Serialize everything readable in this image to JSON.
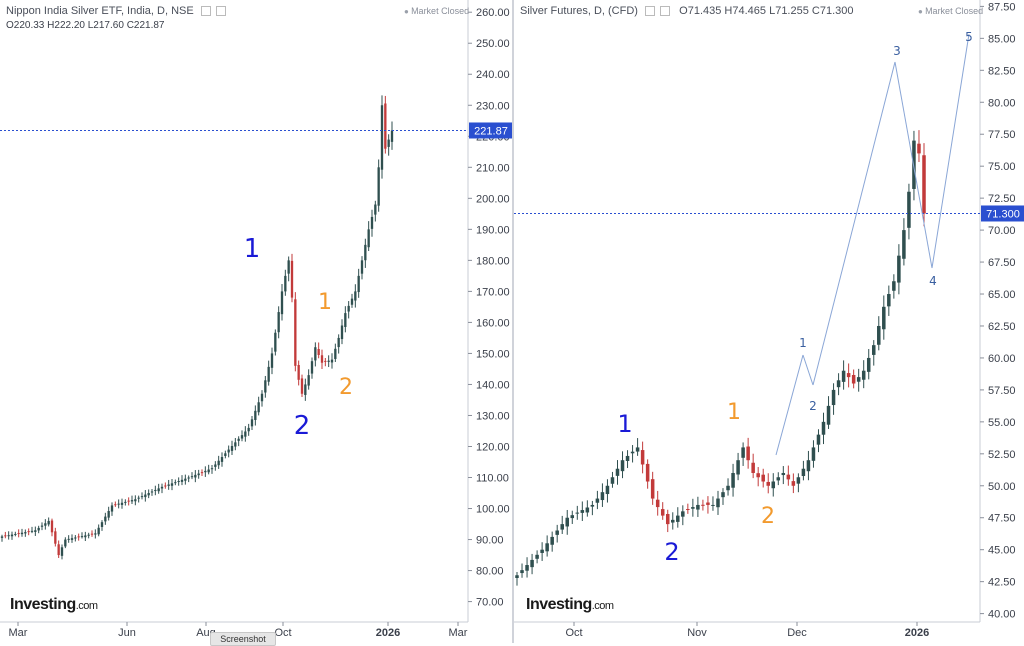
{
  "chart_data": [
    {
      "type": "candlestick",
      "header": "Nippon India Silver ETF, India, D, NSE",
      "status": "Market Closed",
      "ohlc": {
        "o": "O220.33",
        "h": "H222.20",
        "l": "L217.60",
        "c": "C221.87"
      },
      "last_price": 221.87,
      "last_price_label": "221.87",
      "y_ticks": [
        70,
        80,
        90,
        100,
        110,
        120,
        130,
        140,
        150,
        160,
        170,
        180,
        190,
        200,
        210,
        220,
        230,
        240,
        250,
        260
      ],
      "y_tick_labels": [
        "70.00",
        "80.00",
        "90.00",
        "100.00",
        "110.00",
        "120.00",
        "130.00",
        "140.00",
        "150.00",
        "160.00",
        "170.00",
        "180.00",
        "190.00",
        "200.00",
        "210.00",
        "220.00",
        "230.00",
        "240.00",
        "250.00",
        "260.00"
      ],
      "ylim": [
        66,
        262
      ],
      "x_labels": [
        "Mar",
        "Jun",
        "Aug",
        "Oct",
        "2026",
        "Mar"
      ],
      "series": [],
      "annotations": [
        {
          "text": "1",
          "x": 252,
          "y": 257,
          "color": "#1a1ad6",
          "size": 26
        },
        {
          "text": "2",
          "x": 302,
          "y": 434,
          "color": "#1a1ad6",
          "size": 26
        },
        {
          "text": "1",
          "x": 325,
          "y": 309,
          "color": "#f29a2e",
          "size": 22
        },
        {
          "text": "2",
          "x": 346,
          "y": 394,
          "color": "#f29a2e",
          "size": 22
        }
      ],
      "logo": "Investing",
      "logo_suffix": ".com"
    },
    {
      "type": "candlestick",
      "header": "Silver Futures, D, (CFD)",
      "status": "Market Closed",
      "ohlc": {
        "o": "O71.435",
        "h": "H74.465",
        "l": "L71.255",
        "c": "C71.300"
      },
      "last_price": 71.3,
      "last_price_label": "71.300",
      "y_ticks": [
        40,
        42.5,
        45,
        47.5,
        50,
        52.5,
        55,
        57.5,
        60,
        62.5,
        65,
        67.5,
        70,
        72.5,
        75,
        77.5,
        80,
        82.5,
        85,
        87.5
      ],
      "y_tick_labels": [
        "40.00",
        "42.50",
        "45.00",
        "47.50",
        "50.00",
        "52.50",
        "55.00",
        "57.50",
        "60.00",
        "62.50",
        "65.00",
        "67.50",
        "70.00",
        "72.50",
        "75.00",
        "77.50",
        "80.00",
        "82.50",
        "85.00",
        "87.50"
      ],
      "ylim": [
        39.5,
        88
      ],
      "x_labels": [
        "Oct",
        "Nov",
        "Dec",
        "2026"
      ],
      "series": [],
      "wave_labels": [
        {
          "text": "1",
          "x": 111,
          "y": 432,
          "color": "#1a1ad6",
          "size": 24
        },
        {
          "text": "2",
          "x": 158,
          "y": 560,
          "color": "#1a1ad6",
          "size": 24
        },
        {
          "text": "1",
          "x": 220,
          "y": 419,
          "color": "#f29a2e",
          "size": 22
        },
        {
          "text": "2",
          "x": 254,
          "y": 523,
          "color": "#f29a2e",
          "size": 22
        },
        {
          "text": "1",
          "x": 289,
          "y": 347,
          "color": "#3a5fa0",
          "size": 12
        },
        {
          "text": "2",
          "x": 299,
          "y": 410,
          "color": "#3a5fa0",
          "size": 12
        },
        {
          "text": "3",
          "x": 383,
          "y": 55,
          "color": "#3a5fa0",
          "size": 12
        },
        {
          "text": "4",
          "x": 419,
          "y": 285,
          "color": "#3a5fa0",
          "size": 12
        },
        {
          "text": "5",
          "x": 455,
          "y": 41,
          "color": "#3a5fa0",
          "size": 12
        }
      ],
      "logo": "Investing",
      "logo_suffix": ".com"
    }
  ],
  "footer": {
    "screenshot_label": "Screenshot"
  }
}
